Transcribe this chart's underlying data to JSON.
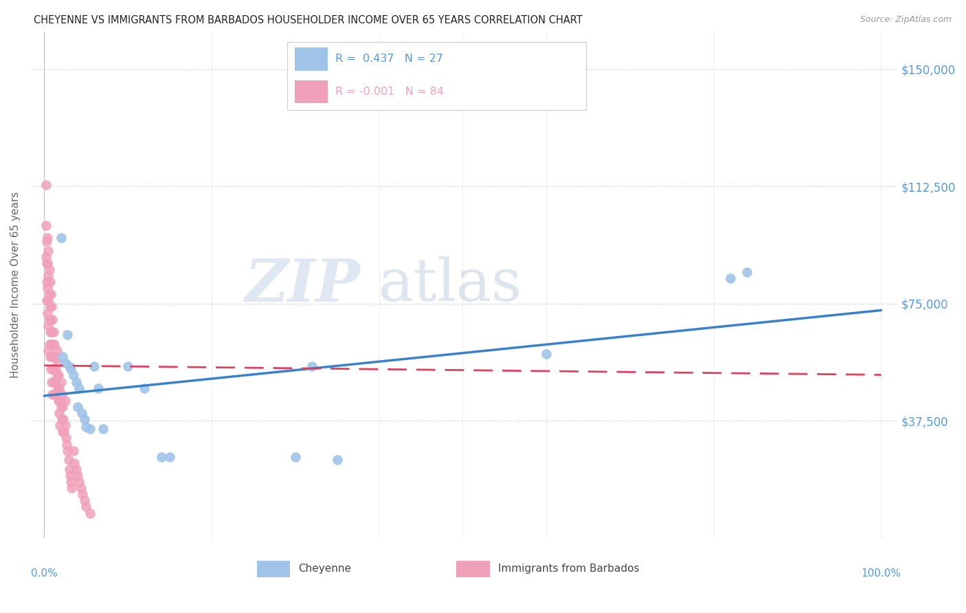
{
  "title": "CHEYENNE VS IMMIGRANTS FROM BARBADOS HOUSEHOLDER INCOME OVER 65 YEARS CORRELATION CHART",
  "source": "Source: ZipAtlas.com",
  "ylabel": "Householder Income Over 65 years",
  "watermark_zip": "ZIP",
  "watermark_atlas": "atlas",
  "ytick_vals": [
    0,
    37500,
    75000,
    112500,
    150000
  ],
  "ytick_labels": [
    "",
    "$37,500",
    "$75,000",
    "$112,500",
    "$150,000"
  ],
  "xlim": [
    -0.015,
    1.02
  ],
  "ylim": [
    0,
    162000
  ],
  "cheyenne_color": "#a0c4e8",
  "barbados_color": "#f0a0b8",
  "cheyenne_line_color": "#3a80cc",
  "barbados_line_color": "#e04060",
  "grid_color": "#cccccc",
  "title_color": "#222222",
  "axis_tick_color": "#5599dd",
  "ylabel_color": "#666666",
  "source_color": "#999999",
  "cheyenne_R": 0.437,
  "cheyenne_N": 27,
  "barbados_R": -0.001,
  "barbados_N": 84,
  "cheyenne_x": [
    0.02,
    0.022,
    0.025,
    0.028,
    0.03,
    0.032,
    0.035,
    0.038,
    0.04,
    0.042,
    0.045,
    0.048,
    0.05,
    0.055,
    0.06,
    0.065,
    0.07,
    0.1,
    0.12,
    0.14,
    0.15,
    0.3,
    0.32,
    0.35,
    0.6,
    0.82,
    0.84
  ],
  "cheyenne_y": [
    96000,
    58000,
    56000,
    65000,
    55000,
    54000,
    52000,
    50000,
    42000,
    48000,
    40000,
    38000,
    35500,
    35000,
    55000,
    48000,
    35000,
    55000,
    48000,
    26000,
    26000,
    26000,
    55000,
    25000,
    59000,
    83000,
    85000
  ],
  "barbados_x": [
    0.002,
    0.002,
    0.002,
    0.003,
    0.003,
    0.003,
    0.003,
    0.004,
    0.004,
    0.004,
    0.004,
    0.005,
    0.005,
    0.005,
    0.005,
    0.005,
    0.006,
    0.006,
    0.006,
    0.006,
    0.007,
    0.007,
    0.007,
    0.007,
    0.008,
    0.008,
    0.008,
    0.008,
    0.009,
    0.009,
    0.009,
    0.009,
    0.01,
    0.01,
    0.01,
    0.01,
    0.011,
    0.011,
    0.011,
    0.012,
    0.012,
    0.012,
    0.013,
    0.013,
    0.014,
    0.014,
    0.015,
    0.015,
    0.016,
    0.016,
    0.017,
    0.017,
    0.018,
    0.018,
    0.019,
    0.019,
    0.02,
    0.02,
    0.021,
    0.021,
    0.022,
    0.022,
    0.023,
    0.024,
    0.025,
    0.025,
    0.026,
    0.027,
    0.028,
    0.029,
    0.03,
    0.031,
    0.032,
    0.033,
    0.035,
    0.036,
    0.038,
    0.04,
    0.042,
    0.044,
    0.046,
    0.048,
    0.05,
    0.055
  ],
  "barbados_y": [
    113000,
    100000,
    90000,
    95000,
    88000,
    82000,
    76000,
    96000,
    88000,
    80000,
    72000,
    92000,
    84000,
    76000,
    68000,
    60000,
    86000,
    78000,
    70000,
    62000,
    82000,
    74000,
    66000,
    58000,
    78000,
    70000,
    62000,
    54000,
    74000,
    66000,
    58000,
    50000,
    70000,
    62000,
    54000,
    46000,
    66000,
    58000,
    50000,
    62000,
    54000,
    46000,
    58000,
    50000,
    54000,
    46000,
    60000,
    52000,
    56000,
    48000,
    52000,
    44000,
    48000,
    40000,
    44000,
    36000,
    50000,
    42000,
    46000,
    38000,
    42000,
    34000,
    38000,
    34000,
    44000,
    36000,
    32000,
    30000,
    28000,
    25000,
    22000,
    20000,
    18000,
    16000,
    28000,
    24000,
    22000,
    20000,
    18000,
    16000,
    14000,
    12000,
    10000,
    8000
  ]
}
